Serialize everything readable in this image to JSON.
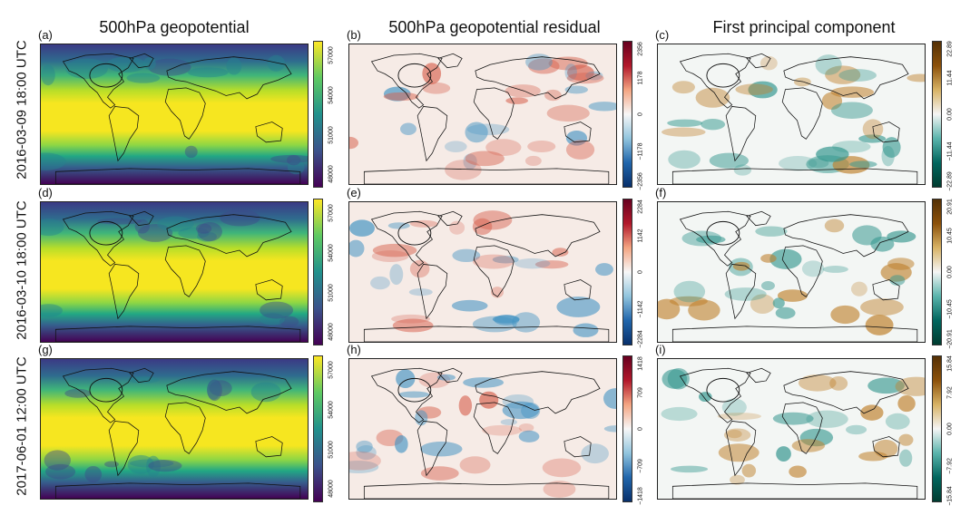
{
  "column_titles": [
    "500hPa geopotential",
    "500hPa geopotential residual",
    "First principal component"
  ],
  "row_labels": [
    "2016-03-09 18:00 UTC",
    "2016-03-10 18:00 UTC",
    "2017-06-01 12:00 UTC"
  ],
  "panel_labels": [
    "(a)",
    "(b)",
    "(c)",
    "(d)",
    "(e)",
    "(f)",
    "(g)",
    "(h)",
    "(i)"
  ],
  "colors": {
    "viridis": [
      "#440154",
      "#3b528b",
      "#21918c",
      "#5ec962",
      "#fde725"
    ],
    "rdbu": [
      "#08306b",
      "#2166ac",
      "#92c5de",
      "#f7f7f7",
      "#f4a582",
      "#b2182b",
      "#67001f"
    ],
    "brbg": [
      "#003c30",
      "#01665e",
      "#5ab4ac",
      "#f5f5f5",
      "#d8b365",
      "#8c510a",
      "#543005"
    ]
  },
  "chart_data": [
    {
      "type": "heatmap",
      "panel": "(a)",
      "title": "500hPa geopotential",
      "row": "2016-03-09 18:00 UTC",
      "colormap": "viridis",
      "colorbar_ticks": [
        "57000",
        "54000",
        "51000",
        "48000"
      ],
      "colorbar_range": [
        47000,
        58500
      ]
    },
    {
      "type": "heatmap",
      "panel": "(b)",
      "title": "500hPa geopotential residual",
      "row": "2016-03-09 18:00 UTC",
      "colormap": "RdBu_r",
      "colorbar_ticks": [
        "2356",
        "1178",
        "0",
        "−1178",
        "−2356"
      ],
      "colorbar_range": [
        -2356,
        2356
      ]
    },
    {
      "type": "heatmap",
      "panel": "(c)",
      "title": "First principal component",
      "row": "2016-03-09 18:00 UTC",
      "colormap": "BrBG_r",
      "colorbar_ticks": [
        "22.89",
        "11.44",
        "0.00",
        "−11.44",
        "−22.89"
      ],
      "colorbar_range": [
        -22.89,
        22.89
      ]
    },
    {
      "type": "heatmap",
      "panel": "(d)",
      "title": "500hPa geopotential",
      "row": "2016-03-10 18:00 UTC",
      "colormap": "viridis",
      "colorbar_ticks": [
        "57000",
        "54000",
        "51000",
        "48000"
      ],
      "colorbar_range": [
        47000,
        58500
      ]
    },
    {
      "type": "heatmap",
      "panel": "(e)",
      "title": "500hPa geopotential residual",
      "row": "2016-03-10 18:00 UTC",
      "colormap": "RdBu_r",
      "colorbar_ticks": [
        "2284",
        "1142",
        "0",
        "−1142",
        "−2284"
      ],
      "colorbar_range": [
        -2284,
        2284
      ]
    },
    {
      "type": "heatmap",
      "panel": "(f)",
      "title": "First principal component",
      "row": "2016-03-10 18:00 UTC",
      "colormap": "BrBG_r",
      "colorbar_ticks": [
        "20.91",
        "10.45",
        "0.00",
        "−10.45",
        "−20.91"
      ],
      "colorbar_range": [
        -20.91,
        20.91
      ]
    },
    {
      "type": "heatmap",
      "panel": "(g)",
      "title": "500hPa geopotential",
      "row": "2017-06-01 12:00 UTC",
      "colormap": "viridis",
      "colorbar_ticks": [
        "57000",
        "54000",
        "51000",
        "48000"
      ],
      "colorbar_range": [
        47000,
        58500
      ]
    },
    {
      "type": "heatmap",
      "panel": "(h)",
      "title": "500hPa geopotential residual",
      "row": "2017-06-01 12:00 UTC",
      "colormap": "RdBu_r",
      "colorbar_ticks": [
        "1418",
        "709",
        "0",
        "−709",
        "−1418"
      ],
      "colorbar_range": [
        -1418,
        1418
      ]
    },
    {
      "type": "heatmap",
      "panel": "(i)",
      "title": "First principal component",
      "row": "2017-06-01 12:00 UTC",
      "colormap": "BrBG_r",
      "colorbar_ticks": [
        "15.84",
        "7.92",
        "0.00",
        "−7.92",
        "−15.84"
      ],
      "colorbar_range": [
        -15.84,
        15.84
      ]
    }
  ]
}
